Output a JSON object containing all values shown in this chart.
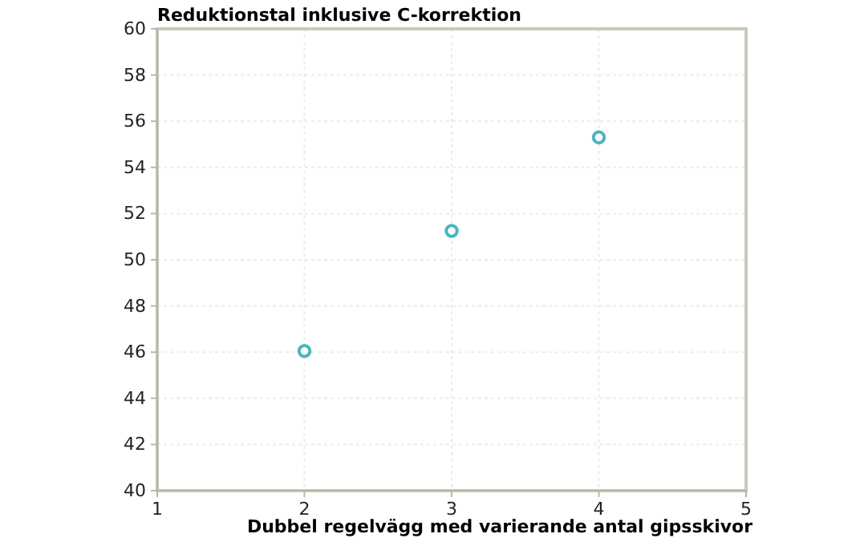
{
  "chart_data": {
    "type": "scatter",
    "ylabel": "Reduktionstal inklusive C-korrektion",
    "xlabel": "Dubbel regelvägg med varierande antal gipsskivor",
    "x": [
      2,
      3,
      4
    ],
    "series": [
      {
        "color": "#4bb5c1",
        "values": [
          46.05,
          51.25,
          55.3
        ]
      }
    ],
    "xlim": [
      1,
      5
    ],
    "xticks": [
      1,
      2,
      3,
      4,
      5
    ],
    "ylim": [
      40,
      60
    ],
    "yticks": [
      40,
      42,
      44,
      46,
      48,
      50,
      52,
      54,
      56,
      58,
      60
    ],
    "grid": true,
    "marker": "circle"
  }
}
